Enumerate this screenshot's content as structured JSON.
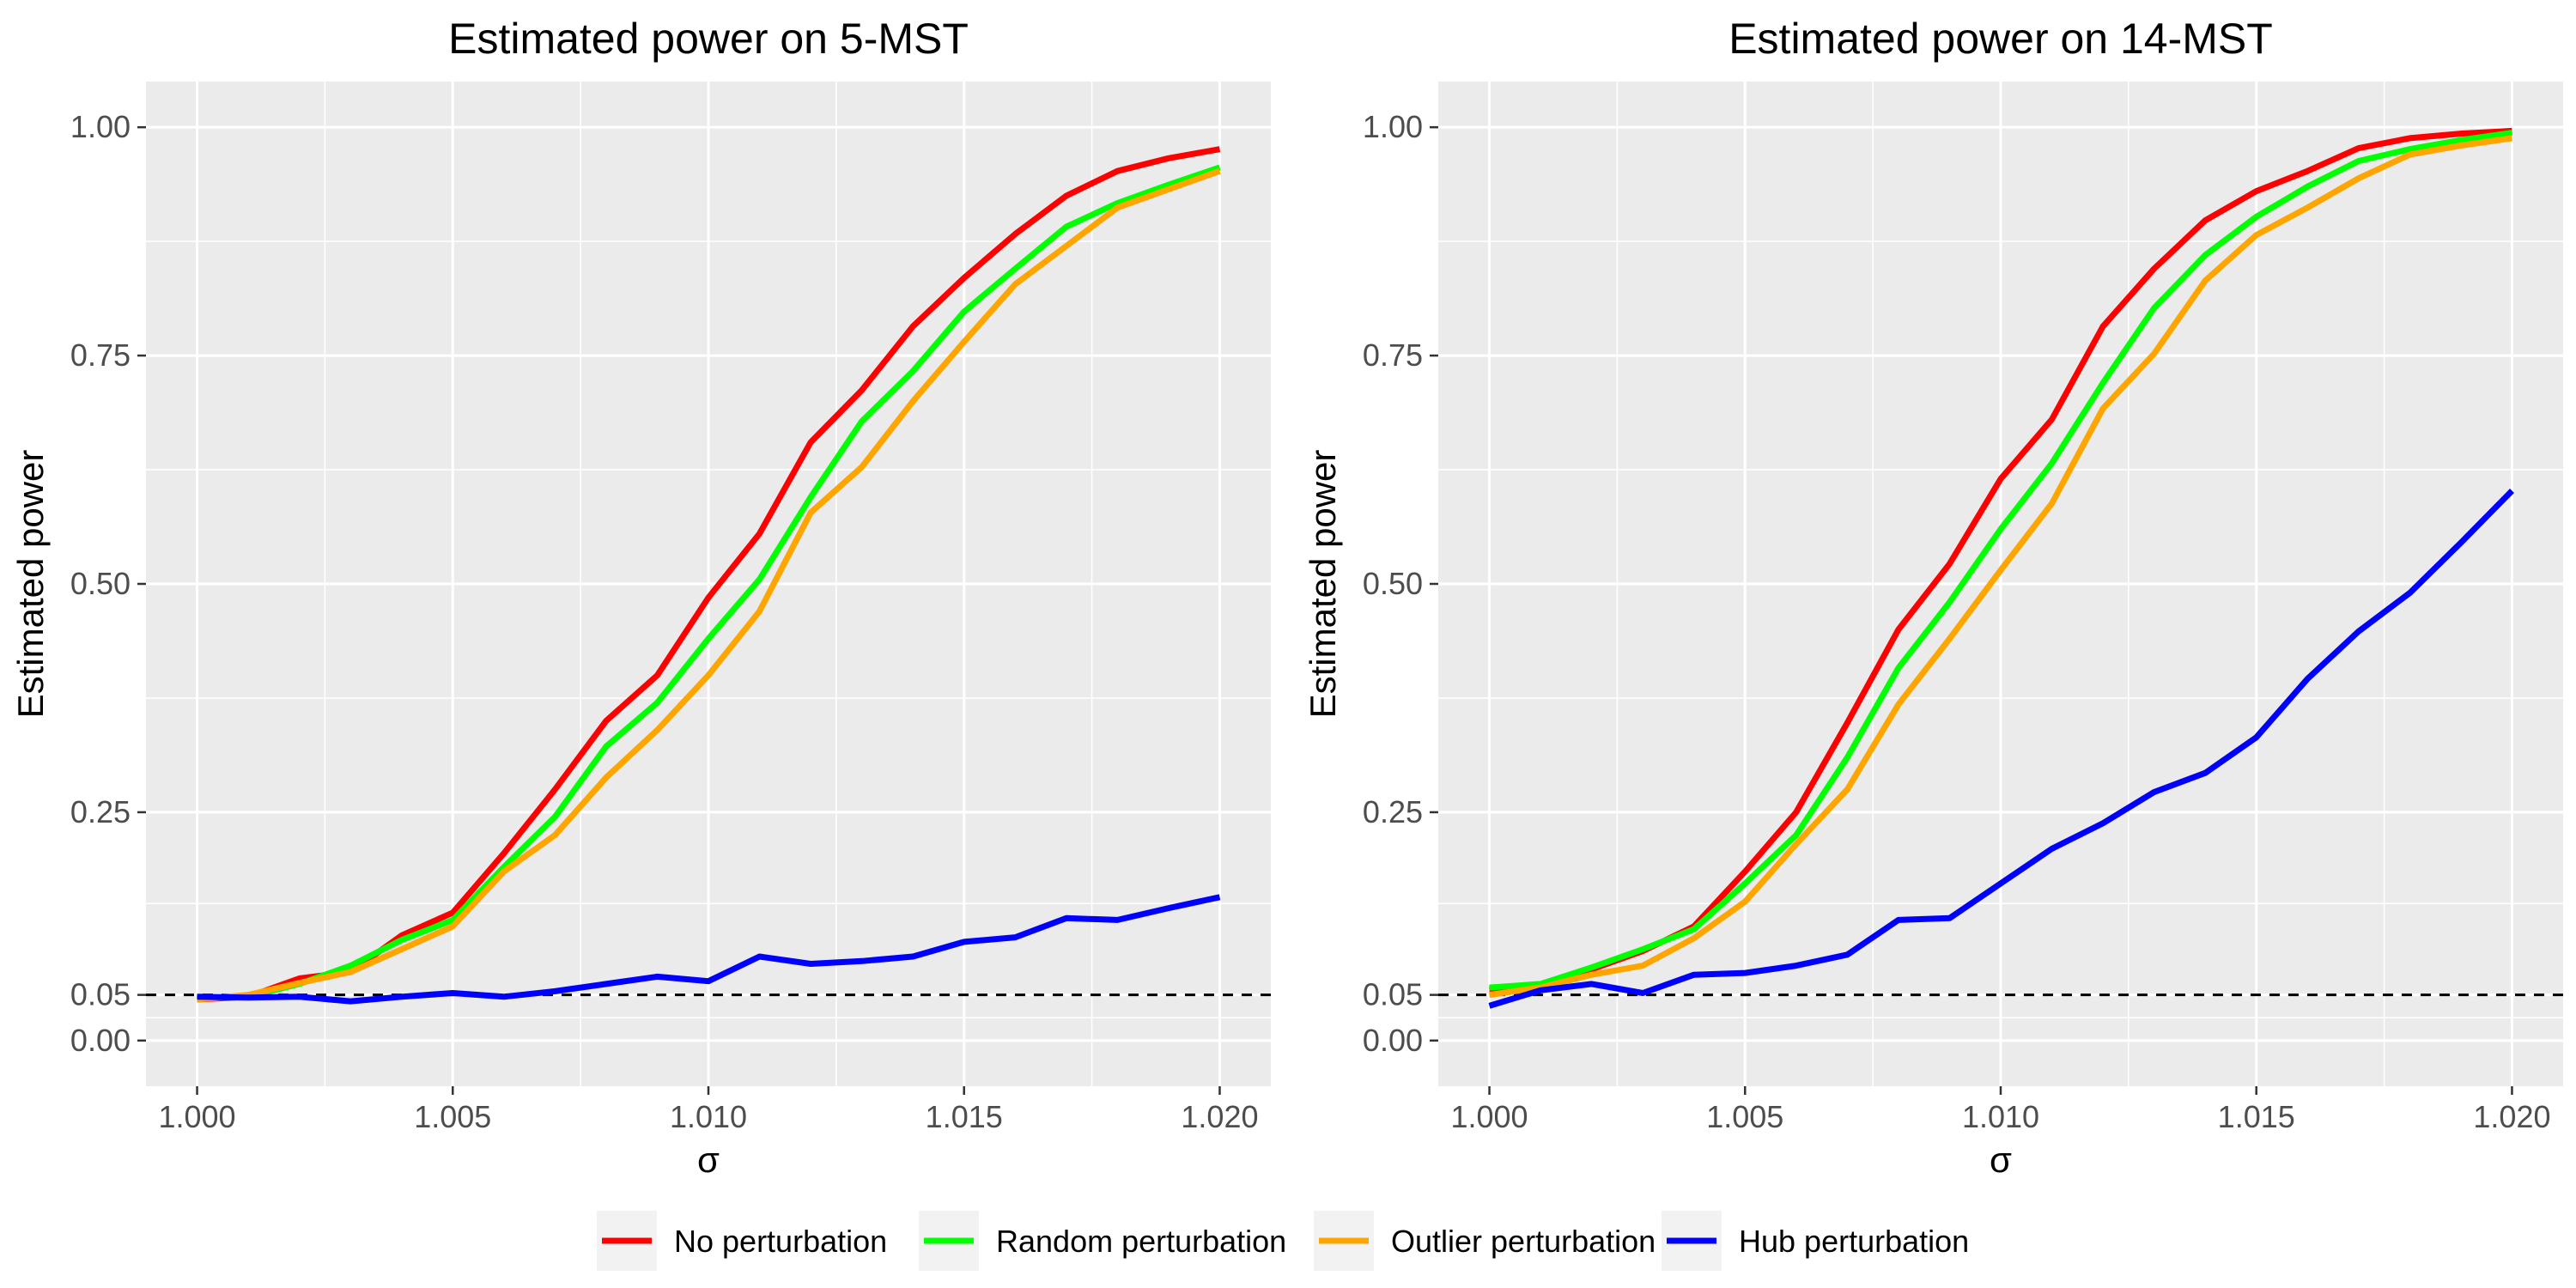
{
  "legend": {
    "items": [
      {
        "label": "No perturbation",
        "color": "#FF0000"
      },
      {
        "label": "Random perturbation",
        "color": "#00FF00"
      },
      {
        "label": "Outlier perturbation",
        "color": "#FFA500"
      },
      {
        "label": "Hub perturbation",
        "color": "#0000FF"
      }
    ]
  },
  "chart_data": [
    {
      "type": "line",
      "title": "Estimated power on 5-MST",
      "xlabel": "σ",
      "ylabel": "Estimated power",
      "xlim": [
        1.0,
        1.02
      ],
      "ylim": [
        0.0,
        1.0
      ],
      "x_ticks": [
        1.0,
        1.005,
        1.01,
        1.015,
        1.02
      ],
      "x_tick_labels": [
        "1.000",
        "1.005",
        "1.010",
        "1.015",
        "1.020"
      ],
      "y_ticks": [
        0.0,
        0.05,
        0.25,
        0.5,
        0.75,
        1.0
      ],
      "y_tick_labels": [
        "0.00",
        "0.05",
        "0.25",
        "0.50",
        "0.75",
        "1.00"
      ],
      "reference_line": {
        "y": 0.05,
        "style": "dashed",
        "color": "#000000"
      },
      "x": [
        1.0,
        1.001,
        1.002,
        1.003,
        1.004,
        1.005,
        1.006,
        1.007,
        1.008,
        1.009,
        1.01,
        1.011,
        1.012,
        1.013,
        1.014,
        1.015,
        1.016,
        1.017,
        1.018,
        1.019,
        1.02
      ],
      "series": [
        {
          "name": "No perturbation",
          "color": "#FF0000",
          "values": [
            0.045,
            0.048,
            0.068,
            0.075,
            0.115,
            0.14,
            0.205,
            0.275,
            0.35,
            0.4,
            0.485,
            0.555,
            0.655,
            0.712,
            0.782,
            0.835,
            0.883,
            0.925,
            0.952,
            0.966,
            0.976
          ]
        },
        {
          "name": "Random perturbation",
          "color": "#00FF00",
          "values": [
            0.047,
            0.048,
            0.062,
            0.082,
            0.11,
            0.132,
            0.19,
            0.245,
            0.322,
            0.37,
            0.44,
            0.505,
            0.595,
            0.678,
            0.733,
            0.798,
            0.845,
            0.891,
            0.917,
            0.937,
            0.956
          ]
        },
        {
          "name": "Outlier perturbation",
          "color": "#FFA500",
          "values": [
            0.045,
            0.05,
            0.063,
            0.075,
            0.1,
            0.125,
            0.185,
            0.225,
            0.288,
            0.34,
            0.4,
            0.47,
            0.578,
            0.628,
            0.7,
            0.765,
            0.828,
            0.87,
            0.912,
            0.932,
            0.952
          ]
        },
        {
          "name": "Hub perturbation",
          "color": "#0000FF",
          "values": [
            0.048,
            0.047,
            0.048,
            0.043,
            0.048,
            0.052,
            0.048,
            0.054,
            0.062,
            0.07,
            0.065,
            0.092,
            0.084,
            0.087,
            0.092,
            0.108,
            0.113,
            0.134,
            0.132,
            0.145,
            0.157
          ]
        }
      ]
    },
    {
      "type": "line",
      "title": "Estimated power on 14-MST",
      "xlabel": "σ",
      "ylabel": "Estimated power",
      "xlim": [
        1.0,
        1.02
      ],
      "ylim": [
        0.0,
        1.0
      ],
      "x_ticks": [
        1.0,
        1.005,
        1.01,
        1.015,
        1.02
      ],
      "x_tick_labels": [
        "1.000",
        "1.005",
        "1.010",
        "1.015",
        "1.020"
      ],
      "y_ticks": [
        0.0,
        0.05,
        0.25,
        0.5,
        0.75,
        1.0
      ],
      "y_tick_labels": [
        "0.00",
        "0.05",
        "0.25",
        "0.50",
        "0.75",
        "1.00"
      ],
      "reference_line": {
        "y": 0.05,
        "style": "dashed",
        "color": "#000000"
      },
      "x": [
        1.0,
        1.001,
        1.002,
        1.003,
        1.004,
        1.005,
        1.006,
        1.007,
        1.008,
        1.009,
        1.01,
        1.011,
        1.012,
        1.013,
        1.014,
        1.015,
        1.016,
        1.017,
        1.018,
        1.019,
        1.02
      ],
      "series": [
        {
          "name": "No perturbation",
          "color": "#FF0000",
          "values": [
            0.055,
            0.06,
            0.078,
            0.098,
            0.125,
            0.185,
            0.25,
            0.348,
            0.45,
            0.522,
            0.615,
            0.68,
            0.782,
            0.845,
            0.898,
            0.93,
            0.952,
            0.977,
            0.988,
            0.993,
            0.996
          ]
        },
        {
          "name": "Random perturbation",
          "color": "#00FF00",
          "values": [
            0.058,
            0.062,
            0.08,
            0.1,
            0.122,
            0.172,
            0.225,
            0.31,
            0.408,
            0.48,
            0.56,
            0.632,
            0.72,
            0.802,
            0.86,
            0.902,
            0.935,
            0.963,
            0.976,
            0.986,
            0.994
          ]
        },
        {
          "name": "Outlier perturbation",
          "color": "#FFA500",
          "values": [
            0.05,
            0.058,
            0.072,
            0.082,
            0.112,
            0.152,
            0.215,
            0.275,
            0.368,
            0.44,
            0.515,
            0.588,
            0.692,
            0.752,
            0.832,
            0.882,
            0.912,
            0.944,
            0.97,
            0.98,
            0.988
          ]
        },
        {
          "name": "Hub perturbation",
          "color": "#0000FF",
          "values": [
            0.038,
            0.055,
            0.062,
            0.052,
            0.072,
            0.074,
            0.082,
            0.094,
            0.132,
            0.134,
            0.172,
            0.21,
            0.238,
            0.272,
            0.293,
            0.332,
            0.396,
            0.448,
            0.49,
            0.545,
            0.602
          ]
        }
      ]
    }
  ]
}
